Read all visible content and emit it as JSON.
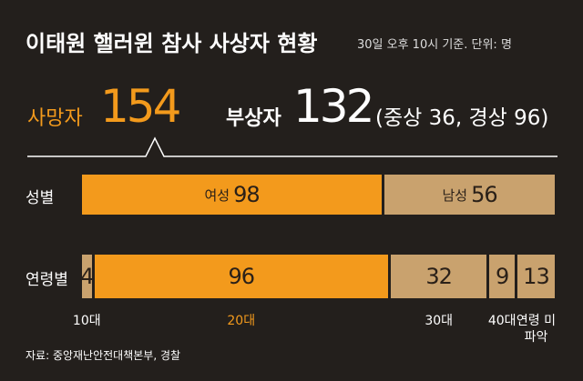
{
  "chart_data": {
    "type": "stacked-bar",
    "title": "이태원 핼러윈 참사 사상자 현황",
    "subtitle": "30일 오후 10시 기준. 단위: 명",
    "deaths": {
      "label": "사망자",
      "value": 154,
      "color": "#f39a1c"
    },
    "injured": {
      "label": "부상자",
      "value": 132,
      "detail": "(중상 36, 경상 96)",
      "color": "#ffffff"
    },
    "xlim": [
      0,
      154
    ],
    "rows": [
      {
        "label": "성별",
        "name_position": "inside",
        "segments": [
          {
            "name": "여성",
            "value": 98,
            "color": "#f39a1c"
          },
          {
            "name": "남성",
            "value": 56,
            "color": "#c9a26e"
          }
        ]
      },
      {
        "label": "연령별",
        "name_position": "below",
        "segments": [
          {
            "name": "10대",
            "value": 4,
            "color": "#c9a26e",
            "label_color": "#ffffff"
          },
          {
            "name": "20대",
            "value": 96,
            "color": "#f39a1c",
            "label_color": "#f39a1c"
          },
          {
            "name": "30대",
            "value": 32,
            "color": "#c9a26e",
            "label_color": "#ffffff"
          },
          {
            "name": "40대",
            "value": 9,
            "color": "#c9a26e",
            "label_color": "#ffffff"
          },
          {
            "name": "연령 미파악",
            "value": 13,
            "color": "#c9a26e",
            "label_color": "#ffffff"
          }
        ]
      }
    ],
    "source": "자료: 중앙재난안전대책본부, 경찰"
  }
}
